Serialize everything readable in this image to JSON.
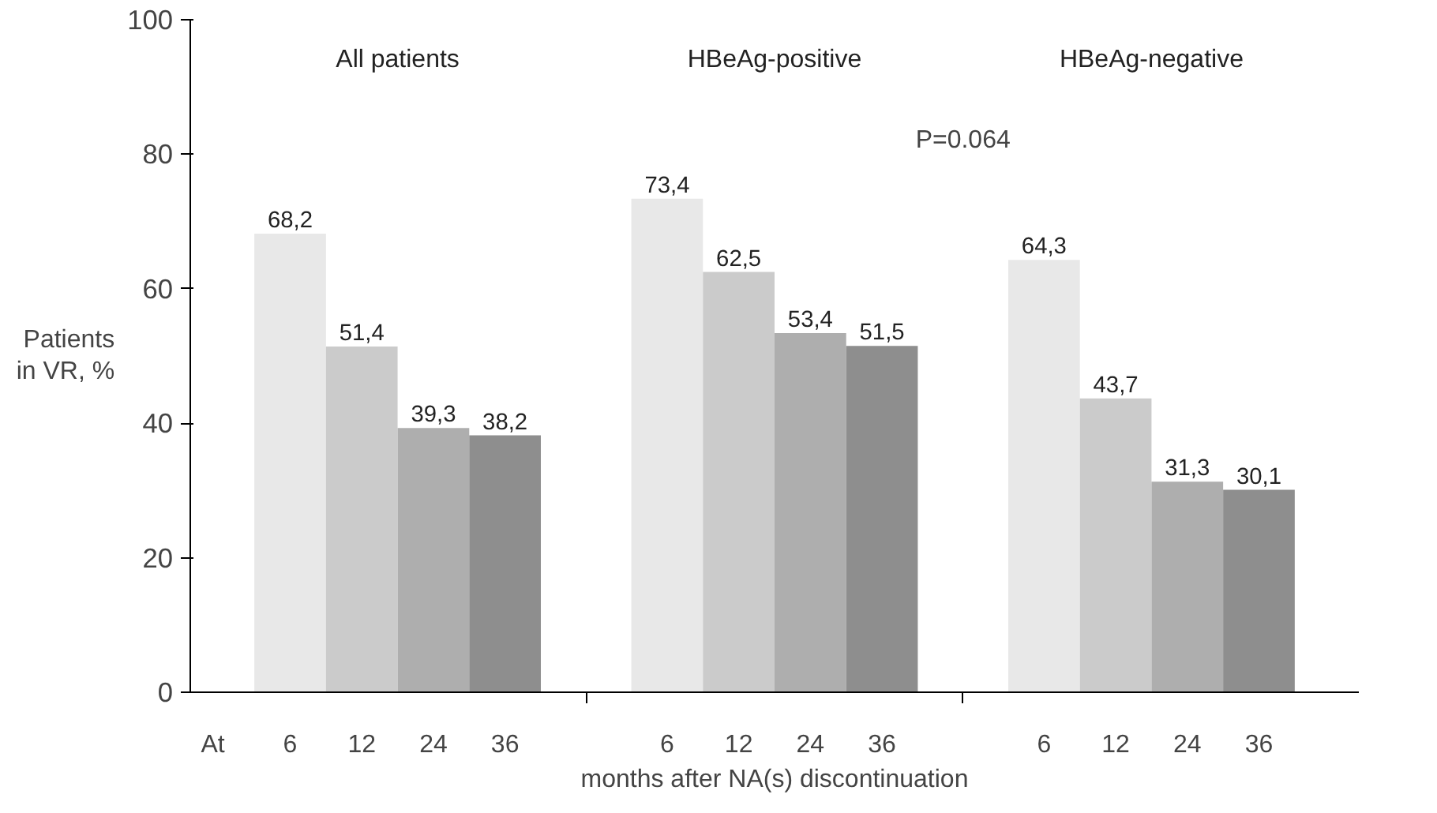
{
  "chart_data": {
    "type": "bar",
    "ylabel": "Patients in VR, %",
    "xlabel": "months after NA(s) discontinuation",
    "categories": [
      "All patients",
      "HBeAg-positive",
      "HBeAg-negative"
    ],
    "series": [
      {
        "name": "6",
        "color": "#e8e8e8",
        "values": [
          68.2,
          73.4,
          64.3
        ],
        "value_labels": [
          "68,2",
          "73,4",
          "64,3"
        ]
      },
      {
        "name": "12",
        "color": "#cbcbcb",
        "values": [
          51.4,
          62.5,
          43.7
        ],
        "value_labels": [
          "51,4",
          "62,5",
          "43,7"
        ]
      },
      {
        "name": "24",
        "color": "#aeaeae",
        "values": [
          39.3,
          53.4,
          31.3
        ],
        "value_labels": [
          "39,3",
          "53,4",
          "31,3"
        ]
      },
      {
        "name": "36",
        "color": "#8e8e8e",
        "values": [
          38.2,
          51.5,
          30.1
        ],
        "value_labels": [
          "38,2",
          "51,5",
          "30,1"
        ]
      }
    ],
    "ylim": [
      0,
      100
    ],
    "yticks": [
      0,
      20,
      40,
      60,
      80,
      100
    ],
    "grid": false,
    "annotations": [
      "At",
      "P=0.064"
    ]
  }
}
